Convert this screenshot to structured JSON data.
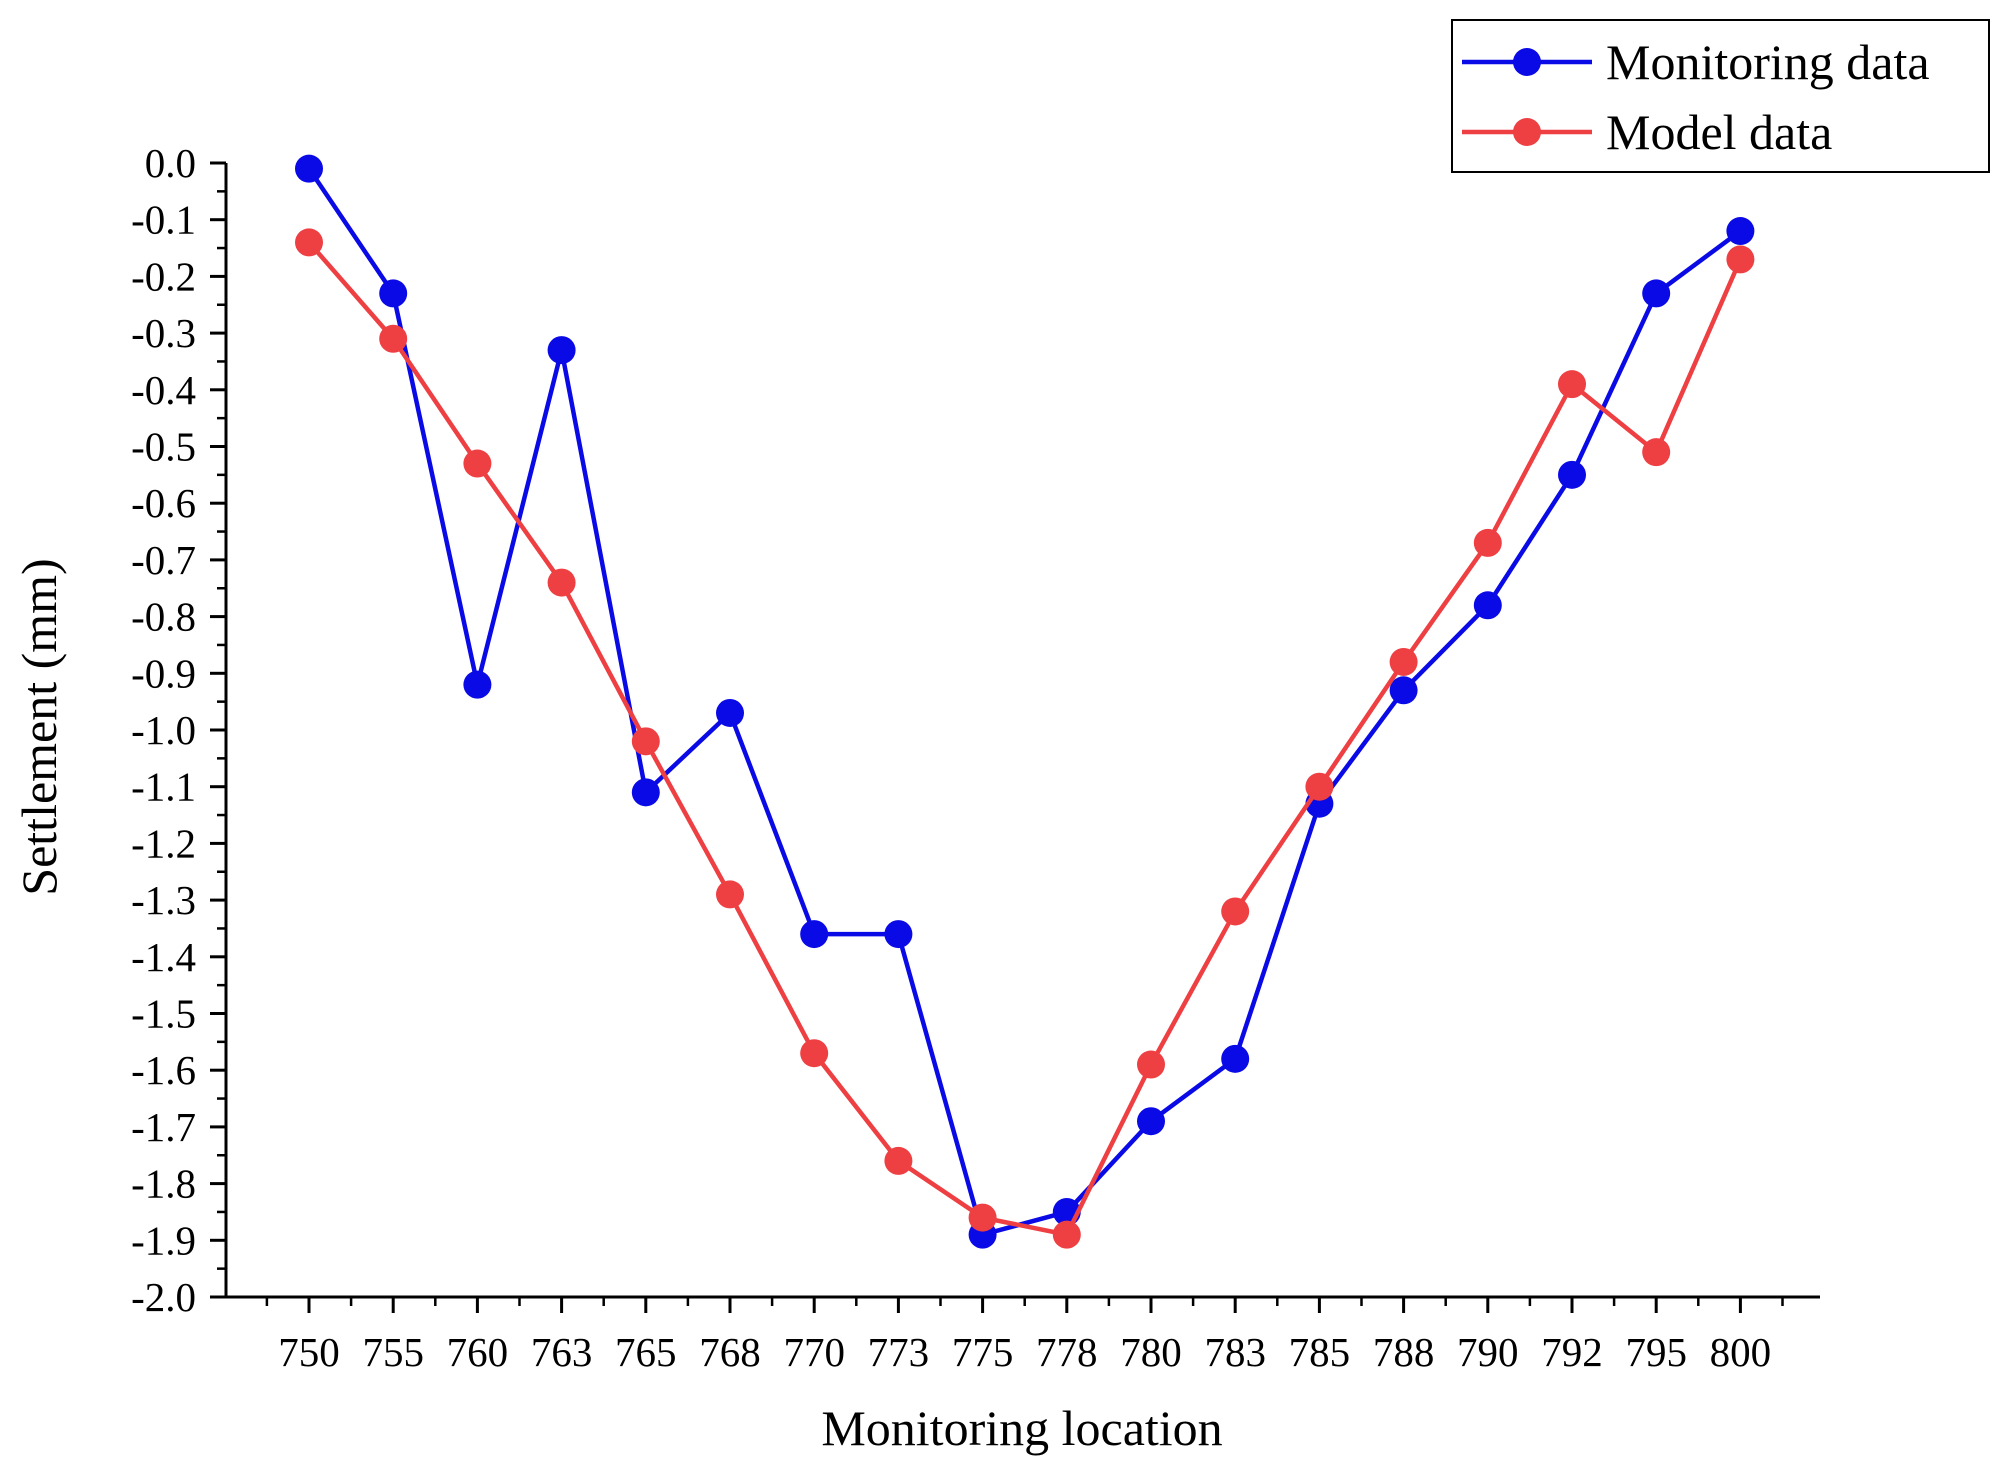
{
  "chart_data": {
    "type": "line",
    "title": "",
    "xlabel": "Monitoring location",
    "ylabel": "Settlement (mm)",
    "categories": [
      "750",
      "755",
      "760",
      "763",
      "765",
      "768",
      "770",
      "773",
      "775",
      "778",
      "780",
      "783",
      "785",
      "788",
      "790",
      "792",
      "795",
      "800"
    ],
    "ylim": [
      -2.0,
      0.0
    ],
    "y_major_step": 0.1,
    "y_tick_labels": [
      "0.0",
      "-0.1",
      "-0.2",
      "-0.3",
      "-0.4",
      "-0.5",
      "-0.6",
      "-0.7",
      "-0.8",
      "-0.9",
      "-1.0",
      "-1.1",
      "-1.2",
      "-1.3",
      "-1.4",
      "-1.5",
      "-1.6",
      "-1.7",
      "-1.8",
      "-1.9",
      "-2.0"
    ],
    "legend_position": "top-right",
    "grid": false,
    "series": [
      {
        "name": "Monitoring data",
        "color": "#0a0ae6",
        "values": [
          -0.01,
          -0.23,
          -0.92,
          -0.33,
          -1.11,
          -0.97,
          -1.36,
          -1.36,
          -1.89,
          -1.85,
          -1.69,
          -1.58,
          -1.13,
          -0.93,
          -0.78,
          -0.55,
          -0.23,
          -0.12
        ]
      },
      {
        "name": "Model data",
        "color": "#ee3f42",
        "values": [
          -0.14,
          -0.31,
          -0.53,
          -0.74,
          -1.02,
          -1.29,
          -1.57,
          -1.76,
          -1.86,
          -1.89,
          -1.59,
          -1.32,
          -1.1,
          -0.88,
          -0.67,
          -0.39,
          -0.51,
          -0.17
        ]
      }
    ]
  }
}
